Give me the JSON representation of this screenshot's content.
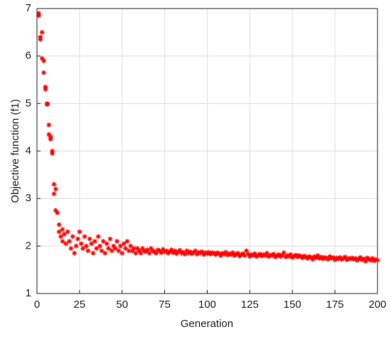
{
  "chart_data": {
    "type": "scatter",
    "x_label": "Generation",
    "y_label": "Objective function (f1)",
    "color": "#ff0000",
    "marker": "star",
    "grid": true,
    "xlim": [
      0,
      200
    ],
    "xticks": [
      0,
      25,
      50,
      75,
      100,
      125,
      150,
      175,
      200
    ],
    "ylim": [
      1,
      7
    ],
    "yticks": [
      1,
      2,
      3,
      4,
      5,
      6,
      7
    ],
    "x": [
      1,
      1,
      2,
      2,
      3,
      3,
      4,
      4,
      5,
      5,
      6,
      6,
      7,
      7,
      8,
      8,
      9,
      9,
      10,
      10,
      11,
      11,
      12,
      13,
      13,
      14,
      15,
      15,
      16,
      17,
      18,
      19,
      20,
      21,
      22,
      23,
      24,
      25,
      26,
      27,
      28,
      29,
      30,
      31,
      32,
      33,
      34,
      35,
      36,
      37,
      38,
      39,
      40,
      41,
      42,
      43,
      44,
      45,
      46,
      47,
      48,
      49,
      50,
      51,
      52,
      53,
      54,
      55,
      56,
      57,
      58,
      59,
      60,
      61,
      62,
      63,
      64,
      65,
      66,
      67,
      68,
      69,
      70,
      71,
      72,
      73,
      74,
      75,
      76,
      77,
      78,
      79,
      80,
      81,
      82,
      83,
      84,
      85,
      86,
      87,
      88,
      89,
      90,
      91,
      92,
      93,
      94,
      95,
      96,
      97,
      98,
      99,
      100,
      101,
      102,
      103,
      104,
      105,
      106,
      107,
      108,
      109,
      110,
      111,
      112,
      113,
      114,
      115,
      116,
      117,
      118,
      119,
      120,
      121,
      122,
      123,
      124,
      125,
      126,
      127,
      128,
      129,
      130,
      131,
      132,
      133,
      134,
      135,
      136,
      137,
      138,
      139,
      140,
      141,
      142,
      143,
      144,
      145,
      146,
      147,
      148,
      149,
      150,
      151,
      152,
      153,
      154,
      155,
      156,
      157,
      158,
      159,
      160,
      161,
      162,
      163,
      164,
      165,
      166,
      167,
      168,
      169,
      170,
      171,
      172,
      173,
      174,
      175,
      176,
      177,
      178,
      179,
      180,
      181,
      182,
      183,
      184,
      185,
      186,
      187,
      188,
      189,
      190,
      191,
      192,
      193,
      194,
      195,
      196,
      197,
      198,
      199,
      200
    ],
    "values": [
      6.85,
      6.9,
      6.35,
      6.4,
      6.5,
      5.95,
      5.9,
      5.65,
      5.35,
      5.3,
      5.0,
      4.98,
      4.55,
      4.35,
      4.3,
      4.25,
      4.0,
      3.95,
      3.3,
      3.1,
      3.2,
      2.75,
      2.7,
      2.45,
      2.3,
      2.2,
      2.1,
      2.35,
      2.25,
      2.05,
      2.3,
      2.1,
      1.95,
      2.2,
      1.85,
      2.0,
      2.15,
      2.3,
      2.05,
      1.95,
      2.2,
      2.0,
      1.9,
      2.15,
      2.05,
      1.85,
      2.1,
      1.95,
      2.2,
      2.0,
      1.9,
      2.1,
      1.85,
      2.05,
      1.95,
      2.15,
      1.9,
      2.0,
      1.95,
      2.1,
      1.9,
      2.0,
      1.85,
      2.05,
      1.95,
      2.1,
      1.9,
      2.0,
      1.9,
      1.95,
      1.85,
      1.95,
      1.9,
      1.85,
      1.95,
      1.9,
      1.88,
      1.92,
      1.85,
      1.95,
      1.9,
      1.88,
      1.85,
      1.92,
      1.9,
      1.86,
      1.93,
      1.88,
      1.9,
      1.85,
      1.88,
      1.92,
      1.86,
      1.9,
      1.84,
      1.88,
      1.91,
      1.85,
      1.87,
      1.83,
      1.9,
      1.85,
      1.88,
      1.84,
      1.86,
      1.9,
      1.83,
      1.87,
      1.85,
      1.88,
      1.82,
      1.86,
      1.84,
      1.87,
      1.83,
      1.86,
      1.85,
      1.82,
      1.86,
      1.84,
      1.8,
      1.85,
      1.83,
      1.87,
      1.81,
      1.84,
      1.82,
      1.86,
      1.8,
      1.83,
      1.85,
      1.79,
      1.82,
      1.84,
      1.8,
      1.9,
      1.83,
      1.78,
      1.82,
      1.8,
      1.84,
      1.78,
      1.81,
      1.83,
      1.79,
      1.82,
      1.8,
      1.85,
      1.78,
      1.81,
      1.8,
      1.83,
      1.77,
      1.8,
      1.82,
      1.78,
      1.81,
      1.86,
      1.77,
      1.8,
      1.78,
      1.82,
      1.76,
      1.79,
      1.81,
      1.77,
      1.8,
      1.78,
      1.75,
      1.79,
      1.77,
      1.74,
      1.78,
      1.76,
      1.72,
      1.78,
      1.75,
      1.8,
      1.74,
      1.77,
      1.73,
      1.76,
      1.75,
      1.72,
      1.78,
      1.74,
      1.76,
      1.71,
      1.75,
      1.73,
      1.76,
      1.72,
      1.74,
      1.77,
      1.71,
      1.74,
      1.73,
      1.75,
      1.72,
      1.74,
      1.7,
      1.73,
      1.76,
      1.71,
      1.73,
      1.68,
      1.75,
      1.72,
      1.7,
      1.74,
      1.69,
      1.72,
      1.7
    ]
  }
}
